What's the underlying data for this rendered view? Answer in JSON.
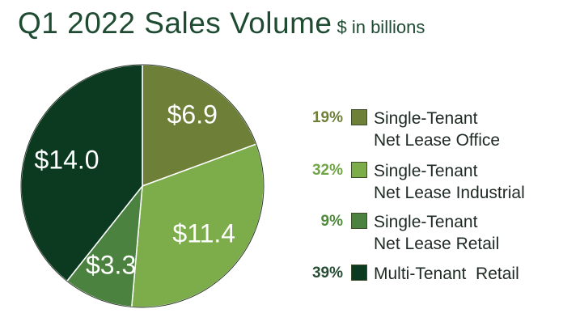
{
  "chart_data": {
    "type": "pie",
    "title": "Q1 2022 Sales Volume",
    "subtitle": "$ in billions",
    "slices": [
      {
        "value_label": "$6.9",
        "value": 6.9,
        "percent": "19%",
        "legend_line1": "Single-Tenant",
        "legend_line2": "Net Lease Office",
        "color": "#6e7f38",
        "pct_color": "#6e7f38"
      },
      {
        "value_label": "$11.4",
        "value": 11.4,
        "percent": "32%",
        "legend_line1": "Single-Tenant",
        "legend_line2": "Net Lease Industrial",
        "color": "#7cad4a",
        "pct_color": "#6fa545"
      },
      {
        "value_label": "$3.3",
        "value": 3.3,
        "percent": "9%",
        "legend_line1": "Single-Tenant",
        "legend_line2": "Net Lease Retail",
        "color": "#4c823f",
        "pct_color": "#4f8a3c"
      },
      {
        "value_label": "$14.0",
        "value": 14.0,
        "percent": "39%",
        "legend_line1": "Multi-Tenant  Retail",
        "legend_line2": "",
        "color": "#0c3a21",
        "pct_color": "#254d33"
      }
    ]
  }
}
